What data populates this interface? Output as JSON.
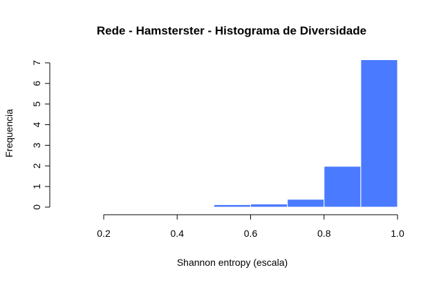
{
  "chart_data": {
    "type": "bar",
    "title": "Rede - Hamsterster - Histograma de Diversidade",
    "xlabel": "Shannon entropy (escala)",
    "ylabel": "Frequencia",
    "bins": [
      {
        "start": 0.5,
        "end": 0.6,
        "value": 0.12
      },
      {
        "start": 0.6,
        "end": 0.7,
        "value": 0.15
      },
      {
        "start": 0.7,
        "end": 0.8,
        "value": 0.38
      },
      {
        "start": 0.8,
        "end": 0.9,
        "value": 1.98
      },
      {
        "start": 0.9,
        "end": 1.0,
        "value": 7.15
      }
    ],
    "xlim": [
      0.2,
      1.0
    ],
    "ylim": [
      0,
      7
    ],
    "x_ticks": [
      "0.2",
      "0.4",
      "0.6",
      "0.8",
      "1.0"
    ],
    "y_ticks": [
      "0",
      "1",
      "2",
      "3",
      "4",
      "5",
      "6",
      "7"
    ],
    "grid": false,
    "bar_color": "#4a7aff"
  }
}
